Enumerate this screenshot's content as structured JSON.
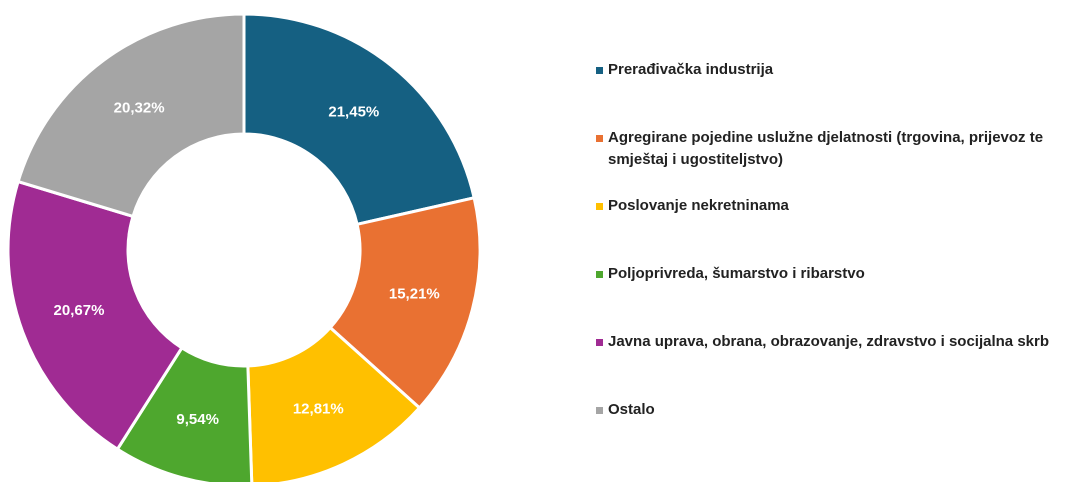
{
  "chart_data": {
    "type": "donut",
    "categories": [
      "Prerađivačka industrija",
      "Agregirane pojedine uslužne djelatnosti (trgovina, prijevoz te smještaj i ugostiteljstvo)",
      "Poslovanje nekretninama",
      "Poljoprivreda, šumarstvo i ribarstvo",
      "Javna uprava, obrana, obrazovanje, zdravstvo i socijalna skrb",
      "Ostalo"
    ],
    "values": [
      21.45,
      15.21,
      12.81,
      9.54,
      20.67,
      20.32
    ],
    "value_labels": [
      "21,45%",
      "15,21%",
      "12,81%",
      "9,54%",
      "20,67%",
      "20,32%"
    ],
    "colors": [
      "#156082",
      "#e97132",
      "#ffc000",
      "#4ea72e",
      "#a02b93",
      "#a5a5a5"
    ],
    "legend": "right"
  }
}
